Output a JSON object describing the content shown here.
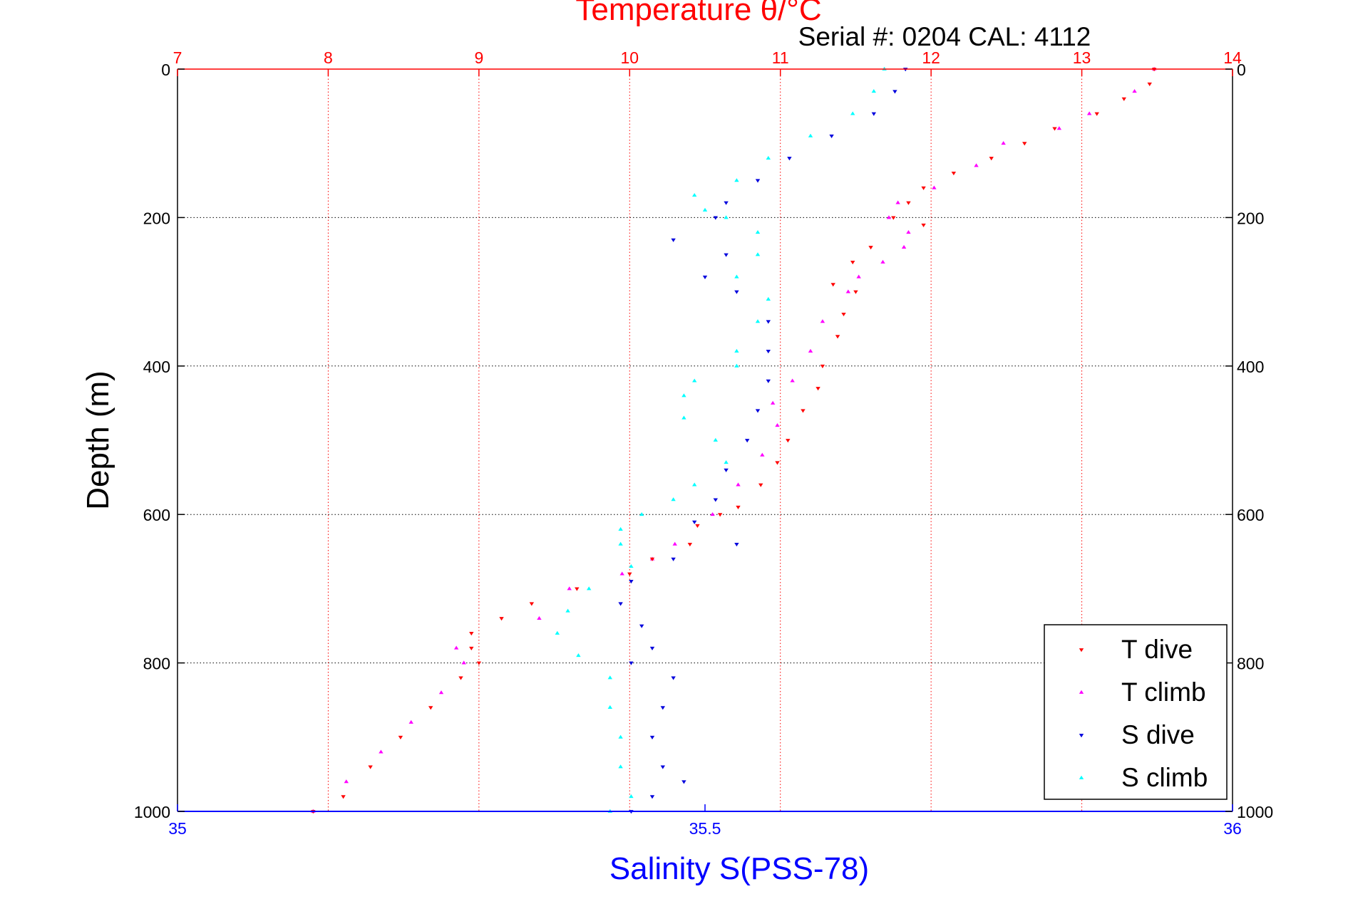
{
  "chart_data": {
    "type": "scatter",
    "title": "Temperature θ/°C",
    "subtitle": "Serial #: 0204  CAL: 4112",
    "ylabel": "Depth (m)",
    "xlabel": "Salinity S(PSS-78)",
    "grid": true,
    "legend_position": "bottom-right",
    "y_axis": {
      "range": [
        0,
        1000
      ],
      "reversed": true,
      "ticks": [
        "0",
        "200",
        "400",
        "600",
        "800",
        "1000"
      ]
    },
    "x_axis_top": {
      "quantity": "temperature",
      "range": [
        7,
        14
      ],
      "ticks": [
        "7",
        "8",
        "9",
        "10",
        "11",
        "12",
        "13",
        "14"
      ]
    },
    "x_axis_bottom": {
      "quantity": "salinity",
      "range": [
        35,
        36
      ],
      "ticks": [
        "35",
        "35.5",
        "36"
      ]
    },
    "colors": {
      "t_dive": "#ff0000",
      "t_climb": "#ff00ff",
      "s_dive": "#0000dd",
      "s_climb": "#00ffff",
      "temp_axis": "#ff0000",
      "sal_axis": "#0000ff"
    },
    "series": [
      {
        "name": "T dive",
        "axis": "temperature",
        "marker": "triangle-down",
        "color": "#ff0000",
        "depth": [
          0,
          20,
          40,
          60,
          80,
          100,
          120,
          140,
          160,
          180,
          200,
          210,
          240,
          260,
          290,
          300,
          330,
          360,
          400,
          430,
          460,
          500,
          530,
          560,
          590,
          600,
          615,
          640,
          660,
          680,
          700,
          720,
          740,
          760,
          780,
          800,
          820,
          860,
          900,
          940,
          980,
          1000
        ],
        "values": [
          13.48,
          13.45,
          13.28,
          13.1,
          12.82,
          12.62,
          12.4,
          12.15,
          11.95,
          11.85,
          11.75,
          11.95,
          11.6,
          11.48,
          11.35,
          11.5,
          11.42,
          11.38,
          11.28,
          11.25,
          11.15,
          11.05,
          10.98,
          10.87,
          10.72,
          10.6,
          10.45,
          10.4,
          10.15,
          10.0,
          9.65,
          9.35,
          9.15,
          8.95,
          8.95,
          9.0,
          8.88,
          8.68,
          8.48,
          8.28,
          8.1,
          7.9
        ]
      },
      {
        "name": "T climb",
        "axis": "temperature",
        "marker": "triangle-up",
        "color": "#ff00ff",
        "depth": [
          0,
          30,
          60,
          80,
          100,
          130,
          160,
          180,
          200,
          220,
          240,
          260,
          280,
          300,
          340,
          380,
          420,
          450,
          480,
          520,
          560,
          600,
          640,
          660,
          680,
          700,
          740,
          780,
          800,
          840,
          880,
          920,
          960,
          1000
        ],
        "values": [
          13.48,
          13.35,
          13.05,
          12.85,
          12.48,
          12.3,
          12.02,
          11.78,
          11.72,
          11.85,
          11.82,
          11.68,
          11.52,
          11.45,
          11.28,
          11.2,
          11.08,
          10.95,
          10.98,
          10.88,
          10.72,
          10.55,
          10.3,
          10.15,
          9.95,
          9.6,
          9.4,
          8.85,
          8.9,
          8.75,
          8.55,
          8.35,
          8.12,
          7.9
        ]
      },
      {
        "name": "S dive",
        "axis": "salinity",
        "marker": "triangle-down",
        "color": "#0000dd",
        "depth": [
          0,
          30,
          60,
          90,
          120,
          150,
          180,
          200,
          230,
          250,
          280,
          300,
          340,
          380,
          420,
          460,
          500,
          540,
          580,
          610,
          640,
          660,
          690,
          720,
          750,
          780,
          800,
          820,
          860,
          900,
          940,
          960,
          980,
          1000
        ],
        "values": [
          35.69,
          35.68,
          35.66,
          35.62,
          35.58,
          35.55,
          35.52,
          35.51,
          35.47,
          35.52,
          35.5,
          35.53,
          35.56,
          35.56,
          35.56,
          35.55,
          35.54,
          35.52,
          35.51,
          35.49,
          35.53,
          35.47,
          35.43,
          35.42,
          35.44,
          35.45,
          35.43,
          35.47,
          35.46,
          35.45,
          35.46,
          35.48,
          35.45,
          35.43
        ]
      },
      {
        "name": "S climb",
        "axis": "salinity",
        "marker": "triangle-up",
        "color": "#00ffff",
        "depth": [
          0,
          30,
          60,
          90,
          120,
          150,
          170,
          190,
          200,
          220,
          250,
          280,
          310,
          340,
          380,
          400,
          420,
          440,
          470,
          500,
          530,
          560,
          580,
          600,
          620,
          640,
          670,
          700,
          730,
          760,
          790,
          820,
          860,
          900,
          940,
          980,
          1000
        ],
        "values": [
          35.67,
          35.66,
          35.64,
          35.6,
          35.56,
          35.53,
          35.49,
          35.5,
          35.52,
          35.55,
          35.55,
          35.53,
          35.56,
          35.55,
          35.53,
          35.53,
          35.49,
          35.48,
          35.48,
          35.51,
          35.52,
          35.49,
          35.47,
          35.44,
          35.42,
          35.42,
          35.43,
          35.39,
          35.37,
          35.36,
          35.38,
          35.41,
          35.41,
          35.42,
          35.42,
          35.43,
          35.41
        ]
      }
    ]
  }
}
